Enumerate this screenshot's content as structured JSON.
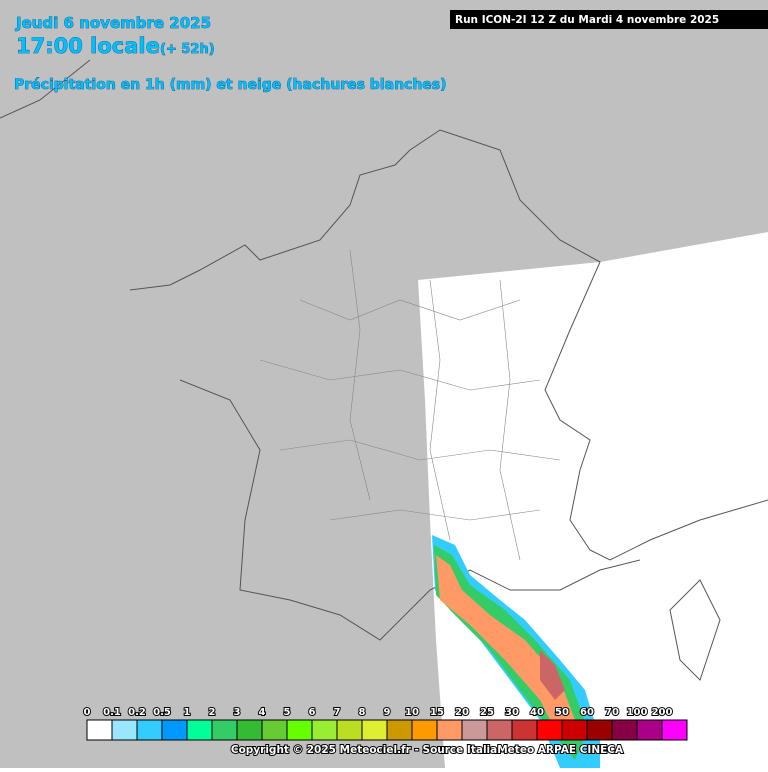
{
  "header": {
    "date": "Jeudi 6 novembre 2025",
    "time": "17:00 locale",
    "lead": "(+ 52h)",
    "subtitle": "Précipitation en 1h (mm) et neige (hachures blanches)"
  },
  "run": "Run ICON-2I 12 Z du Mardi 4 novembre 2025",
  "legend": {
    "labels": [
      "0",
      "0.1",
      "0.2",
      "0.5",
      "1",
      "2",
      "3",
      "4",
      "5",
      "6",
      "7",
      "8",
      "9",
      "10",
      "15",
      "20",
      "25",
      "30",
      "40",
      "50",
      "60",
      "70",
      "100",
      "200"
    ],
    "colors": [
      "#ffffff",
      "#99e6ff",
      "#33ccff",
      "#0099ff",
      "#00ff99",
      "#33cc66",
      "#33bb33",
      "#66cc33",
      "#66ff00",
      "#99ee33",
      "#bbdd22",
      "#ddee33",
      "#cc9900",
      "#ff9900",
      "#ff9966",
      "#cc9999",
      "#cc6666",
      "#cc3333",
      "#ff0000",
      "#cc0000",
      "#990000",
      "#880044",
      "#aa0088",
      "#ff00ff"
    ]
  },
  "copyright": "Copyright © 2025 Meteociel.fr - Source ItaliaMeteo ARPAE CINECA"
}
